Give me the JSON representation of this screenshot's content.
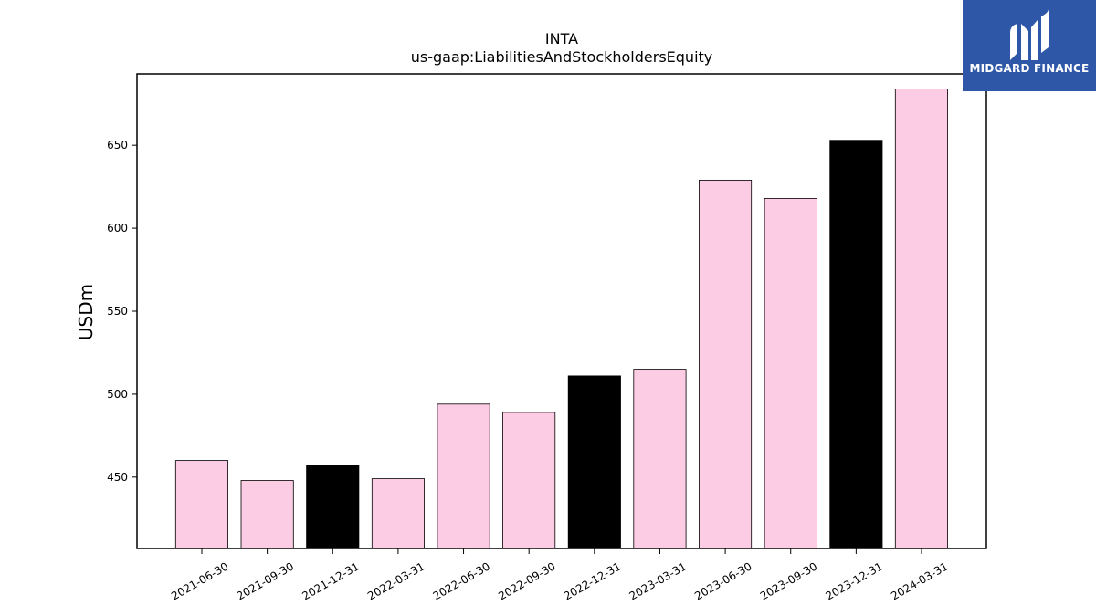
{
  "chart_data": {
    "type": "bar",
    "title": "INTA",
    "subtitle": "us-gaap:LiabilitiesAndStockholdersEquity",
    "ylabel": "USDm",
    "xlabel": "",
    "categories": [
      "2021-06-30",
      "2021-09-30",
      "2021-12-31",
      "2022-03-31",
      "2022-06-30",
      "2022-09-30",
      "2022-12-31",
      "2023-03-31",
      "2023-06-30",
      "2023-09-30",
      "2023-12-31",
      "2024-03-31"
    ],
    "values": [
      460,
      448,
      457,
      449,
      494,
      489,
      511,
      515,
      629,
      618,
      653,
      684
    ],
    "highlight": [
      false,
      false,
      true,
      false,
      false,
      false,
      true,
      false,
      false,
      false,
      true,
      false
    ],
    "colors": {
      "normal": "#fccbe4",
      "highlight": "#000000",
      "edge": "#000000"
    },
    "ylim": [
      407,
      693
    ],
    "yticks": [
      450,
      500,
      550,
      600,
      650
    ],
    "grid": false
  },
  "logo": {
    "name": "logo-mark-icon",
    "text": "MIDGARD FINANCE",
    "background": "#2f57a8"
  }
}
